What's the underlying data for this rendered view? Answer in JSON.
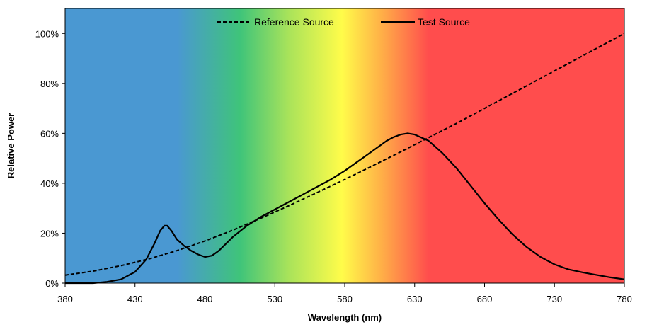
{
  "chart_data": {
    "type": "line",
    "xlabel": "Wavelength (nm)",
    "ylabel": "Relative Power",
    "xlim": [
      380,
      780
    ],
    "ylim": [
      0,
      110
    ],
    "x_ticks": [
      380,
      430,
      480,
      530,
      580,
      630,
      680,
      730,
      780
    ],
    "x_tick_labels": [
      "380",
      "430",
      "480",
      "530",
      "580",
      "630",
      "680",
      "730",
      "780"
    ],
    "y_ticks": [
      0,
      20,
      40,
      60,
      80,
      100
    ],
    "y_tick_labels": [
      "0%",
      "20%",
      "40%",
      "60%",
      "80%",
      "100%"
    ],
    "grid": false,
    "legend_position": "top-center",
    "background": "visible-spectrum gradient",
    "spectrum_colors": [
      {
        "wavelength": 380,
        "color": "#4a98d2"
      },
      {
        "wavelength": 460,
        "color": "#4a98d2"
      },
      {
        "wavelength": 505,
        "color": "#3fc47a"
      },
      {
        "wavelength": 540,
        "color": "#a9e35a"
      },
      {
        "wavelength": 578,
        "color": "#fffc4a"
      },
      {
        "wavelength": 605,
        "color": "#ffb347"
      },
      {
        "wavelength": 640,
        "color": "#ff4d4d"
      },
      {
        "wavelength": 780,
        "color": "#ff4d4d"
      }
    ],
    "series": [
      {
        "name": "Reference Source",
        "style": "dashed",
        "color": "#000000",
        "x": [
          380,
          400,
          420,
          440,
          460,
          480,
          500,
          520,
          540,
          560,
          580,
          600,
          620,
          640,
          660,
          680,
          700,
          720,
          740,
          760,
          780
        ],
        "y": [
          3.2,
          4.8,
          7.0,
          9.7,
          13.0,
          16.9,
          21.2,
          26.0,
          31.0,
          36.2,
          41.5,
          47.0,
          52.6,
          58.3,
          64.0,
          70.0,
          76.0,
          82.0,
          88.0,
          94.0,
          100.0
        ]
      },
      {
        "name": "Test Source",
        "style": "solid",
        "color": "#000000",
        "x": [
          380,
          400,
          410,
          420,
          430,
          438,
          444,
          448,
          451,
          453,
          456,
          460,
          465,
          470,
          475,
          480,
          485,
          490,
          500,
          510,
          520,
          530,
          540,
          550,
          560,
          570,
          580,
          590,
          600,
          610,
          615,
          620,
          625,
          630,
          640,
          650,
          660,
          670,
          680,
          690,
          700,
          710,
          720,
          730,
          740,
          750,
          760,
          770,
          780
        ],
        "y": [
          0,
          0,
          0.5,
          1.5,
          4.5,
          9.5,
          16.0,
          21.0,
          23.0,
          23.0,
          21.0,
          17.5,
          15.0,
          13.0,
          11.5,
          10.5,
          11.0,
          13.0,
          18.5,
          23.0,
          26.5,
          29.5,
          32.5,
          35.5,
          38.5,
          41.5,
          45.0,
          49.0,
          53.0,
          57.0,
          58.5,
          59.5,
          60.0,
          59.5,
          57.0,
          52.0,
          46.0,
          39.0,
          32.0,
          25.5,
          19.5,
          14.5,
          10.5,
          7.5,
          5.5,
          4.3,
          3.3,
          2.3,
          1.5
        ]
      }
    ]
  }
}
